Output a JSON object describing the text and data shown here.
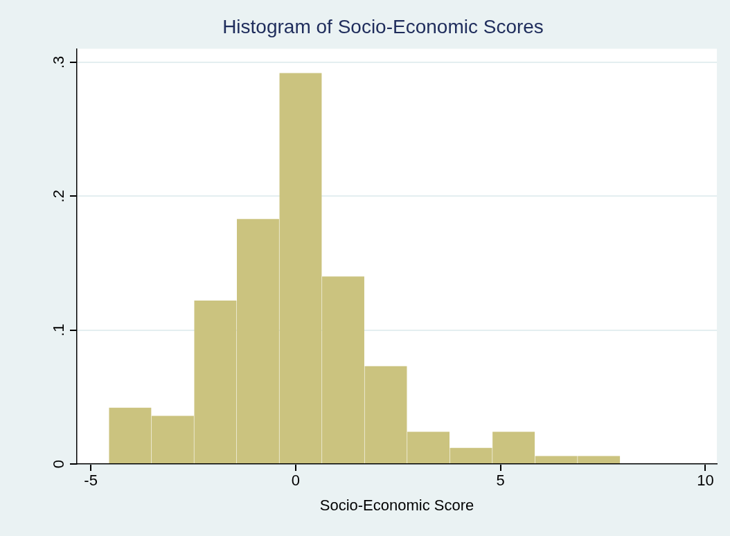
{
  "chart_data": {
    "type": "histogram",
    "title": "Histogram of Socio-Economic Scores",
    "xlabel": "Socio-Economic Score",
    "bins": [
      -4.56,
      -3.52,
      -2.48,
      -1.44,
      -0.4,
      0.64,
      1.68,
      2.72,
      3.76,
      4.8,
      5.84,
      6.88,
      7.92
    ],
    "values": [
      0.042,
      0.036,
      0.122,
      0.183,
      0.292,
      0.14,
      0.073,
      0.024,
      0.012,
      0.024,
      0.006,
      0.006
    ],
    "color": "#cbc37f",
    "xlim": [
      -5.34,
      10.28
    ],
    "xticks": [
      -5,
      0,
      5,
      10
    ],
    "ylim": [
      0,
      0.31
    ],
    "yticks": [
      0,
      {
        "value": 0.1,
        "label": ".1"
      },
      {
        "value": 0.2,
        "label": ".2"
      },
      {
        "value": 0.3,
        "label": ".3"
      }
    ],
    "grid": "y"
  }
}
